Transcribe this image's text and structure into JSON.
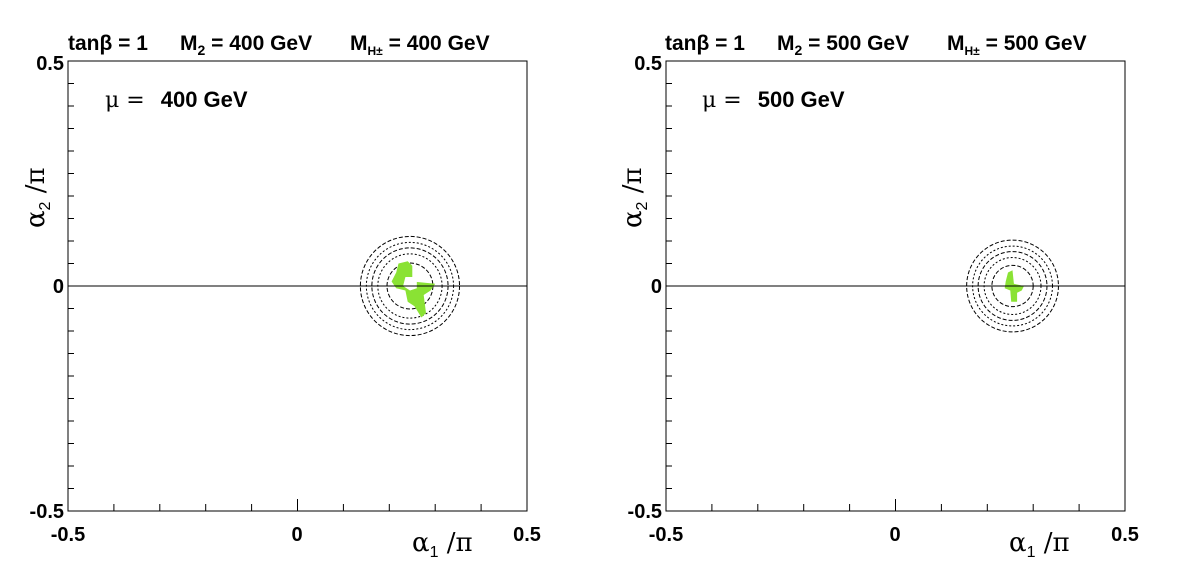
{
  "chart_data": [
    {
      "type": "scatter",
      "title_parts": {
        "tanb": "tanβ = 1",
        "m2_label": "M",
        "m2_sub": "2",
        "m2_val": " = 400 GeV",
        "mh_label": "M",
        "mh_sub": "H±",
        "mh_val": " = 400 GeV"
      },
      "annotation": {
        "mu_sym": "μ =",
        "mu_val": "400 GeV"
      },
      "xlabel": {
        "sym": "α",
        "sub": "1",
        "rest": " /π"
      },
      "ylabel": {
        "sym": "α",
        "sub": "2",
        "rest": " /π"
      },
      "xlim": [
        -0.5,
        0.5
      ],
      "ylim": [
        -0.5,
        0.5
      ],
      "xticklabels": [
        "-0.5",
        "0",
        "0.5"
      ],
      "yticklabels": [
        "0.5",
        "0",
        "-0.5"
      ],
      "hline_y": 0,
      "center": [
        0.245,
        0.0
      ],
      "contour_radii": [
        0.05,
        0.07,
        0.083,
        0.095,
        0.108
      ],
      "region_color": "#8ae234",
      "region_points": [
        [
          0.22,
          0.05
        ],
        [
          0.24,
          0.055
        ],
        [
          0.25,
          0.045
        ],
        [
          0.25,
          0.01
        ],
        [
          0.3,
          0.005
        ],
        [
          0.29,
          -0.01
        ],
        [
          0.275,
          -0.02
        ],
        [
          0.28,
          -0.06
        ],
        [
          0.27,
          -0.07
        ],
        [
          0.255,
          -0.045
        ],
        [
          0.24,
          -0.035
        ],
        [
          0.235,
          -0.01
        ],
        [
          0.215,
          -0.005
        ],
        [
          0.205,
          0.01
        ],
        [
          0.215,
          0.03
        ]
      ],
      "gap_points": [
        [
          0.235,
          0.02
        ],
        [
          0.26,
          0.02
        ],
        [
          0.26,
          -0.005
        ],
        [
          0.245,
          -0.01
        ],
        [
          0.23,
          0.0
        ]
      ]
    },
    {
      "type": "scatter",
      "title_parts": {
        "tanb": "tanβ = 1",
        "m2_label": "M",
        "m2_sub": "2",
        "m2_val": " = 500 GeV",
        "mh_label": "M",
        "mh_sub": "H±",
        "mh_val": " = 500 GeV"
      },
      "annotation": {
        "mu_sym": "μ =",
        "mu_val": "500 GeV"
      },
      "xlabel": {
        "sym": "α",
        "sub": "1",
        "rest": " /π"
      },
      "ylabel": {
        "sym": "α",
        "sub": "2",
        "rest": " /π"
      },
      "xlim": [
        -0.5,
        0.5
      ],
      "ylim": [
        -0.5,
        0.5
      ],
      "xticklabels": [
        "-0.5",
        "0",
        "0.5"
      ],
      "yticklabels": [
        "0.5",
        "0",
        "-0.5"
      ],
      "hline_y": 0,
      "center": [
        0.255,
        0.0
      ],
      "contour_radii": [
        0.045,
        0.062,
        0.075,
        0.087,
        0.1
      ],
      "region_color": "#8ae234",
      "region_points": [
        [
          0.245,
          0.03
        ],
        [
          0.255,
          0.035
        ],
        [
          0.258,
          0.005
        ],
        [
          0.28,
          0.0
        ],
        [
          0.275,
          -0.01
        ],
        [
          0.265,
          -0.015
        ],
        [
          0.265,
          -0.035
        ],
        [
          0.252,
          -0.035
        ],
        [
          0.25,
          -0.01
        ],
        [
          0.238,
          -0.005
        ],
        [
          0.24,
          0.01
        ]
      ],
      "gap_points": []
    }
  ]
}
